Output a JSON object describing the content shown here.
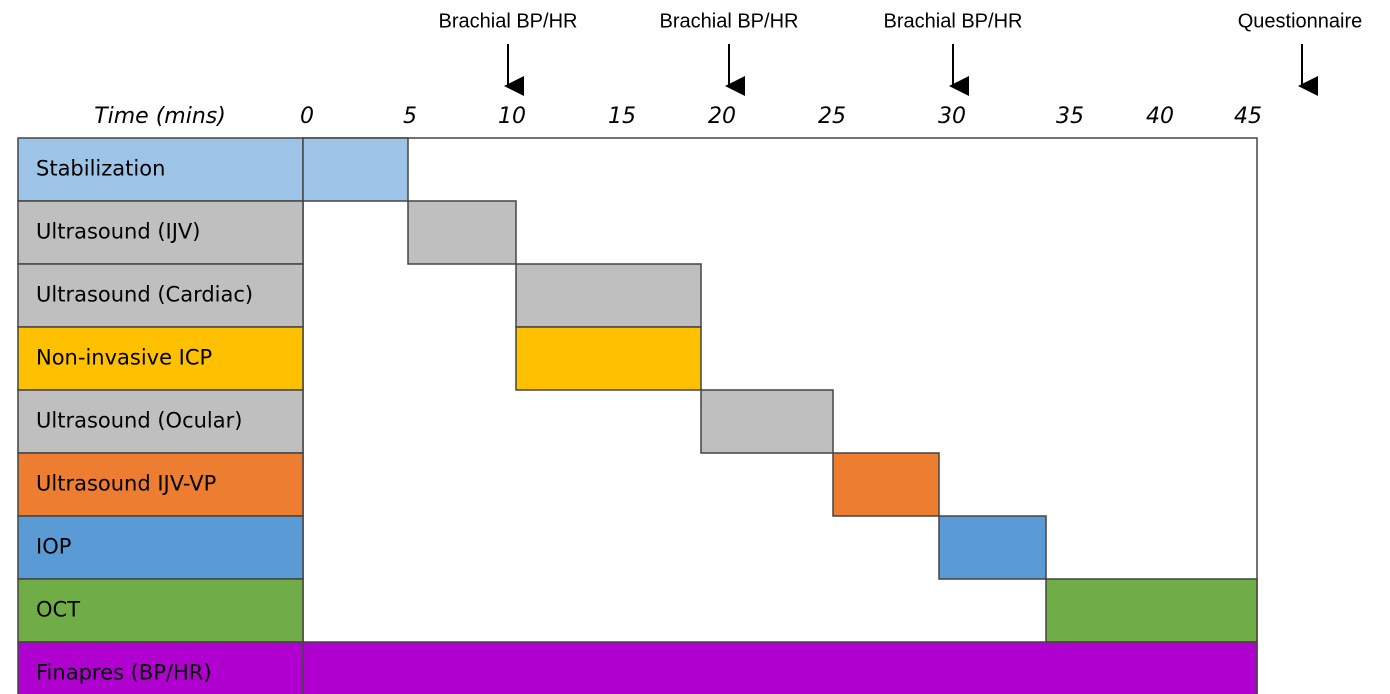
{
  "annotations": [
    "Brachial BP/HR",
    "Brachial BP/HR",
    "Brachial BP/HR",
    "Questionnaire"
  ],
  "time_axis": {
    "label": "Time (mins)",
    "ticks": [
      "0",
      "5",
      "10",
      "15",
      "20",
      "25",
      "30",
      "35",
      "40",
      "45"
    ]
  },
  "rows": [
    "Stabilization",
    "Ultrasound (IJV)",
    "Ultrasound (Cardiac)",
    "Non-invasive ICP",
    "Ultrasound (Ocular)",
    "Ultrasound IJV-VP",
    "IOP",
    "OCT",
    "Finapres (BP/HR)"
  ]
}
